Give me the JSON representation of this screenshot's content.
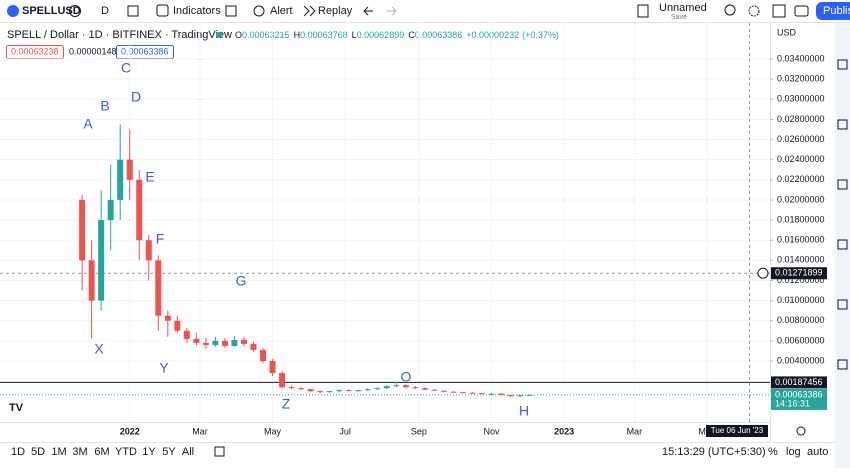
{
  "toolbar": {
    "symbol": "SPELLUSD",
    "interval": "D",
    "indicators": "Indicators",
    "alert": "Alert",
    "replay": "Replay",
    "layout_name": "Unnamed",
    "save": "Save",
    "publish": "Publish"
  },
  "chart_data": {
    "type": "candlestick",
    "title": "SPELL / Dollar · 1D · BITFINEX · TradingView",
    "ohlc_labels": [
      "O",
      "H",
      "L",
      "C"
    ],
    "legend": {
      "open": 0.00063215,
      "high": 0.00063768,
      "low": 0.00062899,
      "close": 0.00063386,
      "change": {
        "value": 2.32e-06,
        "label": "+0.00000232"
      },
      "change_percent": {
        "value": 0.37,
        "label": "(+0.37%)"
      }
    },
    "bid": 0.00063238,
    "spread": 1.48e-06,
    "ask": 0.00063386,
    "currency": "USD",
    "x": [
      "2021-11-22",
      "2021-11-30",
      "2021-12-08",
      "2021-12-16",
      "2021-12-24",
      "2022-01-01",
      "2022-01-09",
      "2022-01-17",
      "2022-01-25",
      "2022-02-02",
      "2022-02-10",
      "2022-02-18",
      "2022-02-26",
      "2022-03-06",
      "2022-03-14",
      "2022-03-22",
      "2022-03-30",
      "2022-04-07",
      "2022-04-15",
      "2022-04-23",
      "2022-05-01",
      "2022-05-09",
      "2022-05-17",
      "2022-05-25",
      "2022-06-02",
      "2022-06-10",
      "2022-06-18",
      "2022-06-26",
      "2022-07-04",
      "2022-07-12",
      "2022-07-20",
      "2022-07-28",
      "2022-08-05",
      "2022-08-13",
      "2022-08-21",
      "2022-08-29",
      "2022-09-06",
      "2022-09-14",
      "2022-09-22",
      "2022-09-30",
      "2022-10-08",
      "2022-10-16",
      "2022-10-24",
      "2022-11-01",
      "2022-11-09",
      "2022-11-17",
      "2022-11-25",
      "2022-12-03"
    ],
    "open": [
      0.02,
      0.014,
      0.01,
      0.018,
      0.02,
      0.024,
      0.022,
      0.016,
      0.014,
      0.0085,
      0.008,
      0.007,
      0.0062,
      0.0058,
      0.0056,
      0.006,
      0.0055,
      0.0061,
      0.0057,
      0.0051,
      0.004,
      0.0028,
      0.0014,
      0.0013,
      0.0012,
      0.001,
      0.0009,
      0.001,
      0.0011,
      0.00105,
      0.0011,
      0.0012,
      0.0013,
      0.0015,
      0.0016,
      0.0014,
      0.0013,
      0.00115,
      0.00105,
      0.00095,
      0.0009,
      0.00085,
      0.0008,
      0.00072,
      0.00075,
      0.00062,
      0.0005,
      0.0006
    ],
    "high": [
      0.0205,
      0.016,
      0.021,
      0.0235,
      0.0275,
      0.027,
      0.023,
      0.0165,
      0.0145,
      0.009,
      0.0085,
      0.0073,
      0.0068,
      0.0063,
      0.0064,
      0.0063,
      0.0065,
      0.0064,
      0.0059,
      0.0053,
      0.0042,
      0.003,
      0.0016,
      0.0014,
      0.0013,
      0.0011,
      0.00105,
      0.0012,
      0.0012,
      0.00115,
      0.0013,
      0.0014,
      0.0016,
      0.0019,
      0.0017,
      0.0015,
      0.0014,
      0.0012,
      0.0011,
      0.001,
      0.00095,
      0.0009,
      0.00085,
      0.0008,
      0.0008,
      0.00066,
      0.00064,
      0.00065
    ],
    "low": [
      0.011,
      0.0062,
      0.009,
      0.015,
      0.018,
      0.02,
      0.014,
      0.012,
      0.007,
      0.0064,
      0.0068,
      0.0058,
      0.0055,
      0.0052,
      0.0054,
      0.0053,
      0.0054,
      0.0054,
      0.0049,
      0.0038,
      0.0025,
      0.0013,
      0.0012,
      0.0011,
      0.0009,
      0.0008,
      0.00085,
      0.0009,
      0.001,
      0.00095,
      0.001,
      0.0011,
      0.0012,
      0.0014,
      0.0013,
      0.0012,
      0.0011,
      0.001,
      0.0009,
      0.00085,
      0.0008,
      0.00075,
      0.0007,
      0.0006,
      0.00058,
      0.00045,
      0.00042,
      0.00058
    ],
    "close": [
      0.014,
      0.01,
      0.018,
      0.02,
      0.024,
      0.022,
      0.016,
      0.014,
      0.0085,
      0.008,
      0.007,
      0.0062,
      0.0058,
      0.0056,
      0.006,
      0.0055,
      0.0061,
      0.0057,
      0.0051,
      0.004,
      0.0028,
      0.0014,
      0.0013,
      0.0012,
      0.001,
      0.0009,
      0.001,
      0.0011,
      0.00105,
      0.0011,
      0.0012,
      0.0013,
      0.0015,
      0.0016,
      0.0014,
      0.0013,
      0.00115,
      0.00105,
      0.00095,
      0.0009,
      0.00085,
      0.0008,
      0.00072,
      0.00075,
      0.00062,
      0.0005,
      0.0006,
      0.00063386
    ],
    "up_color": "#26a69a",
    "down_color": "#ef5350",
    "xlim": [
      "2021-09-14",
      "2023-06-23"
    ],
    "xticks": [
      {
        "value": "2022-01-01",
        "label": "2022"
      },
      {
        "value": "2022-03-01",
        "label": "Mar"
      },
      {
        "value": "2022-05-01",
        "label": "May"
      },
      {
        "value": "2022-07-01",
        "label": "Jul"
      },
      {
        "value": "2022-09-01",
        "label": "Sep"
      },
      {
        "value": "2022-11-01",
        "label": "Nov"
      },
      {
        "value": "2023-01-01",
        "label": "2023"
      },
      {
        "value": "2023-03-01",
        "label": "Mar"
      },
      {
        "value": "2023-05-01",
        "label": "May"
      }
    ],
    "ylim": [
      -0.00186,
      0.03728
    ],
    "yticks": [
      {
        "value": 0.004,
        "label": "0.00400000"
      },
      {
        "value": 0.006,
        "label": "0.00600000"
      },
      {
        "value": 0.008,
        "label": "0.00800000"
      },
      {
        "value": 0.01,
        "label": "0.01000000"
      },
      {
        "value": 0.012,
        "label": "0.01200000"
      },
      {
        "value": 0.014,
        "label": "0.01400000"
      },
      {
        "value": 0.016,
        "label": "0.01600000"
      },
      {
        "value": 0.018,
        "label": "0.01800000"
      },
      {
        "value": 0.02,
        "label": "0.02000000"
      },
      {
        "value": 0.022,
        "label": "0.02200000"
      },
      {
        "value": 0.024,
        "label": "0.02400000"
      },
      {
        "value": 0.026,
        "label": "0.02600000"
      },
      {
        "value": 0.028,
        "label": "0.02800000"
      },
      {
        "value": 0.03,
        "label": "0.03000000"
      },
      {
        "value": 0.032,
        "label": "0.03200000"
      },
      {
        "value": 0.034,
        "label": "0.03400000"
      }
    ],
    "grid": true,
    "horizontal_line": 0.00187456,
    "last_price": 0.00063386,
    "countdown": "14:16:31",
    "crosshair": {
      "price": 0.01271899,
      "date_label": "Tue 06 Jun '23"
    },
    "annotations": [
      "A",
      "B",
      "C",
      "D",
      "E",
      "F",
      "G",
      "X",
      "Y",
      "Z",
      "O",
      "H"
    ]
  },
  "bottom_bar": {
    "ranges": [
      "1D",
      "5D",
      "1M",
      "3M",
      "6M",
      "YTD",
      "1Y",
      "5Y",
      "All"
    ],
    "clock": "15:13:29 (UTC+5:30)",
    "percent": "%",
    "log": "log",
    "auto": "auto"
  }
}
